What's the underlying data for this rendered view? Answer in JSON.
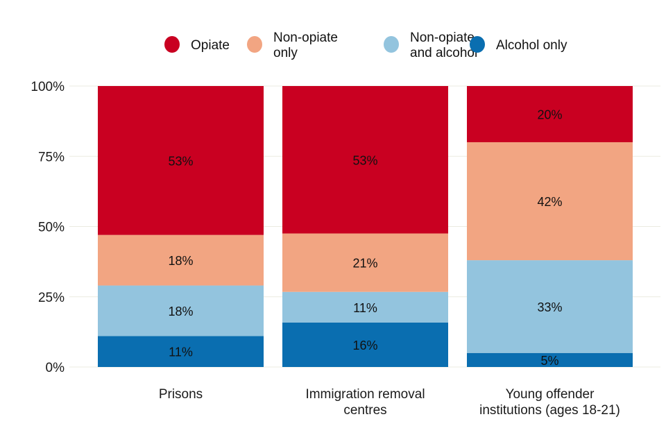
{
  "chart_data": {
    "type": "bar",
    "stacked": true,
    "orientation": "vertical",
    "title": "",
    "xlabel": "",
    "ylabel": "",
    "ylim": [
      0,
      100
    ],
    "y_ticks": [
      "0%",
      "25%",
      "50%",
      "75%",
      "100%"
    ],
    "y_tick_values": [
      0,
      25,
      50,
      75,
      100
    ],
    "grid": true,
    "legend_position": "top",
    "categories": [
      [
        "Prisons"
      ],
      [
        "Immigration removal",
        "centres"
      ],
      [
        "Young offender",
        "institutions (ages 18-21)"
      ]
    ],
    "series": [
      {
        "name": "Alcohol only",
        "legend_lines": [
          "Alcohol only"
        ],
        "color": "#0a6eb0",
        "values": [
          11,
          16,
          5
        ]
      },
      {
        "name": "Non-opiate and alcohol",
        "legend_lines": [
          "Non-opiate",
          "and alcohol"
        ],
        "color": "#93c4de",
        "values": [
          18,
          11,
          33
        ]
      },
      {
        "name": "Non-opiate only",
        "legend_lines": [
          "Non-opiate",
          "only"
        ],
        "color": "#f2a582",
        "values": [
          18,
          21,
          42
        ]
      },
      {
        "name": "Opiate",
        "legend_lines": [
          "Opiate"
        ],
        "color": "#c90021",
        "values": [
          53,
          53,
          20
        ]
      }
    ],
    "legend_order": [
      "Opiate",
      "Non-opiate only",
      "Non-opiate and alcohol",
      "Alcohol only"
    ],
    "value_suffix": "%"
  }
}
